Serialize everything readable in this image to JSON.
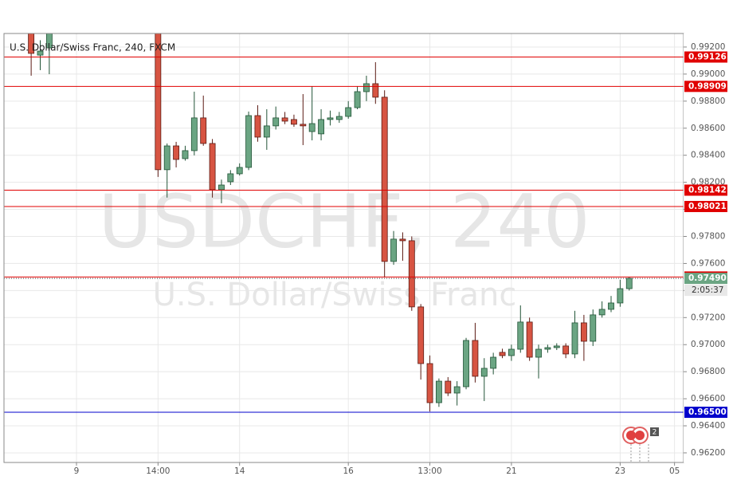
{
  "chart_data": {
    "type": "candlestick",
    "title": "U.S. Dollar/Swiss Franc, 240, FXCM",
    "watermark": "USDCHF, 240",
    "watermark_subtitle": "U.S. Dollar/Swiss Franc",
    "countdown": "2:05:37",
    "event_badge": "2",
    "up_color": "#6ba583",
    "down_color": "#d75442",
    "x": [
      0,
      1,
      2,
      14,
      15,
      16,
      17,
      18,
      19,
      20,
      21,
      22,
      23,
      24,
      25,
      26,
      27,
      28,
      29,
      30,
      31,
      32,
      33,
      34,
      35,
      36,
      37,
      38,
      39,
      40,
      41,
      42,
      43,
      44,
      45,
      46,
      47,
      48,
      49,
      50,
      51,
      52,
      53,
      54,
      55,
      56,
      57,
      58,
      59,
      60,
      61,
      62,
      63,
      64,
      65,
      66
    ],
    "open": [
      0.99371,
      0.9914,
      0.99194,
      0.99371,
      0.98293,
      0.98469,
      0.98375,
      0.98434,
      0.98676,
      0.98487,
      0.98145,
      0.98204,
      0.98263,
      0.9831,
      0.98693,
      0.98534,
      0.98617,
      0.98676,
      0.98664,
      0.98629,
      0.98575,
      0.98558,
      0.98664,
      0.98664,
      0.98687,
      0.98752,
      0.9887,
      0.98929,
      0.98829,
      0.97615,
      0.9778,
      0.97768,
      0.97279,
      0.9686,
      0.96571,
      0.9673,
      0.96642,
      0.96689,
      0.97031,
      0.96766,
      0.96825,
      0.96943,
      0.96919,
      0.96966,
      0.97167,
      0.96907,
      0.96966,
      0.96978,
      0.9699,
      0.96931,
      0.97161,
      0.97025,
      0.9722,
      0.97261,
      0.97308,
      0.97414
    ],
    "high": [
      0.9943,
      0.9925,
      0.9936,
      0.994,
      0.98487,
      0.98499,
      0.9847,
      0.9887,
      0.98841,
      0.9852,
      0.9822,
      0.9829,
      0.9834,
      0.98723,
      0.9877,
      0.9874,
      0.9876,
      0.9872,
      0.987,
      0.98852,
      0.98911,
      0.9874,
      0.9873,
      0.9872,
      0.988,
      0.98911,
      0.98988,
      0.99088,
      0.9888,
      0.9784,
      0.9783,
      0.978,
      0.973,
      0.9692,
      0.9675,
      0.9676,
      0.9673,
      0.9705,
      0.97161,
      0.969,
      0.9694,
      0.9697,
      0.97,
      0.9729,
      0.972,
      0.97,
      0.97,
      0.9701,
      0.9701,
      0.9725,
      0.9722,
      0.9726,
      0.9732,
      0.9736,
      0.9748,
      0.975
    ],
    "low": [
      0.98988,
      0.99029,
      0.98999,
      0.9824,
      0.98087,
      0.9831,
      0.9836,
      0.98399,
      0.9847,
      0.98087,
      0.98045,
      0.9818,
      0.9825,
      0.9829,
      0.985,
      0.9844,
      0.9859,
      0.9863,
      0.9861,
      0.98475,
      0.9851,
      0.9851,
      0.9862,
      0.9864,
      0.9867,
      0.9874,
      0.988,
      0.9878,
      0.97497,
      0.9759,
      0.9762,
      0.9725,
      0.96742,
      0.96506,
      0.9654,
      0.9662,
      0.9655,
      0.9667,
      0.9672,
      0.96583,
      0.9678,
      0.969,
      0.9688,
      0.9694,
      0.9688,
      0.9675,
      0.9694,
      0.9696,
      0.969,
      0.969,
      0.9688,
      0.9699,
      0.972,
      0.9724,
      0.9728,
      0.974
    ],
    "close": [
      0.99153,
      0.9917,
      0.99324,
      0.98293,
      0.98469,
      0.98369,
      0.98434,
      0.98676,
      0.98487,
      0.98145,
      0.9818,
      0.98263,
      0.9831,
      0.98693,
      0.98534,
      0.98617,
      0.98676,
      0.98652,
      0.98629,
      0.98617,
      0.98634,
      0.98664,
      0.98676,
      0.98687,
      0.98752,
      0.9887,
      0.98929,
      0.98829,
      0.97615,
      0.9778,
      0.97768,
      0.97279,
      0.9686,
      0.96571,
      0.9673,
      0.96642,
      0.96689,
      0.97031,
      0.96766,
      0.96825,
      0.96907,
      0.96919,
      0.96966,
      0.97167,
      0.96907,
      0.96966,
      0.96978,
      0.9699,
      0.96931,
      0.97161,
      0.97025,
      0.9722,
      0.97261,
      0.97308,
      0.97414,
      0.9749
    ],
    "xlim": [
      -3,
      72
    ],
    "xticks": [
      {
        "value": 5,
        "label": "9"
      },
      {
        "value": 14,
        "label": "14:00"
      },
      {
        "value": 23,
        "label": "14"
      },
      {
        "value": 35,
        "label": "16"
      },
      {
        "value": 44,
        "label": "13:00"
      },
      {
        "value": 53,
        "label": "21"
      },
      {
        "value": 65,
        "label": "23"
      },
      {
        "value": 71,
        "label": "05"
      }
    ],
    "ylim": [
      0.96129,
      0.993
    ],
    "yticks": [
      {
        "value": 0.962,
        "label": "0.96200"
      },
      {
        "value": 0.964,
        "label": "0.96400"
      },
      {
        "value": 0.966,
        "label": "0.96600"
      },
      {
        "value": 0.968,
        "label": "0.96800"
      },
      {
        "value": 0.97,
        "label": "0.97000"
      },
      {
        "value": 0.972,
        "label": "0.97200"
      },
      {
        "value": 0.974,
        "label": "0.97400"
      },
      {
        "value": 0.976,
        "label": "0.97600"
      },
      {
        "value": 0.978,
        "label": "0.97800"
      },
      {
        "value": 0.98,
        "label": "0.98000"
      },
      {
        "value": 0.982,
        "label": "0.98200"
      },
      {
        "value": 0.984,
        "label": "0.98400"
      },
      {
        "value": 0.986,
        "label": "0.98600"
      },
      {
        "value": 0.988,
        "label": "0.98800"
      },
      {
        "value": 0.99,
        "label": "0.99000"
      },
      {
        "value": 0.992,
        "label": "0.99200"
      }
    ],
    "grid": true,
    "levels": [
      {
        "value": 0.99126,
        "label": "0.99126",
        "color": "#e00000"
      },
      {
        "value": 0.98909,
        "label": "0.98909",
        "color": "#e00000"
      },
      {
        "value": 0.98142,
        "label": "0.98142",
        "color": "#e00000"
      },
      {
        "value": 0.98021,
        "label": "0.98021",
        "color": "#e00000"
      },
      {
        "value": 0.975,
        "label": "0.97500",
        "color": "#e00000"
      },
      {
        "value": 0.9749,
        "label": "0.97490",
        "color": "#6ba583"
      },
      {
        "value": 0.965,
        "label": "0.96500",
        "color": "#0000cc"
      }
    ]
  }
}
